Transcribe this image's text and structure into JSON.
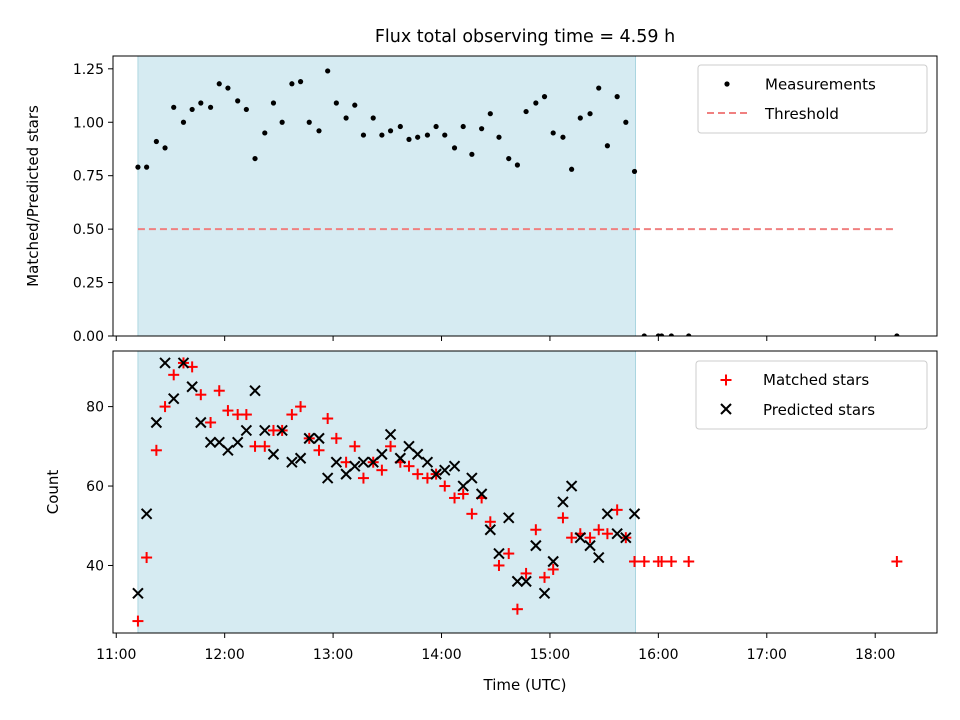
{
  "chart_data": [
    {
      "type": "scatter",
      "panel": "top",
      "title": "Flux total observing time = 4.59 h",
      "xlabel": "",
      "ylabel": "Matched/Predicted stars",
      "xlim": [
        10.97,
        18.57
      ],
      "ylim": [
        0.0,
        1.31
      ],
      "yticks": [
        0.0,
        0.25,
        0.5,
        0.75,
        1.0,
        1.25
      ],
      "ytick_labels": [
        "0.00",
        "0.25",
        "0.50",
        "0.75",
        "1.00",
        "1.25"
      ],
      "observing_window": [
        11.2,
        15.79
      ],
      "legend": {
        "position": "top-right",
        "entries": [
          "Measurements",
          "Threshold"
        ]
      },
      "threshold": {
        "name": "Threshold",
        "y": 0.5,
        "x_range": [
          11.2,
          18.2
        ],
        "color": "#f08080"
      },
      "series": [
        {
          "name": "Measurements",
          "marker": "dot",
          "color": "#000000",
          "x": [
            11.2,
            11.28,
            11.37,
            11.45,
            11.53,
            11.62,
            11.7,
            11.78,
            11.87,
            11.95,
            12.03,
            12.12,
            12.2,
            12.28,
            12.37,
            12.45,
            12.53,
            12.62,
            12.7,
            12.78,
            12.87,
            12.95,
            13.03,
            13.12,
            13.2,
            13.28,
            13.37,
            13.45,
            13.53,
            13.62,
            13.7,
            13.78,
            13.87,
            13.95,
            14.03,
            14.12,
            14.2,
            14.28,
            14.37,
            14.45,
            14.53,
            14.62,
            14.7,
            14.78,
            14.87,
            14.95,
            15.03,
            15.12,
            15.2,
            15.28,
            15.37,
            15.45,
            15.53,
            15.62,
            15.7,
            15.78,
            15.87,
            16.0,
            16.03,
            16.12,
            16.28,
            18.2
          ],
          "y": [
            0.79,
            0.79,
            0.91,
            0.88,
            1.07,
            1.0,
            1.06,
            1.09,
            1.07,
            1.18,
            1.16,
            1.1,
            1.06,
            0.83,
            0.95,
            1.09,
            1.0,
            1.18,
            1.19,
            1.0,
            0.96,
            1.24,
            1.09,
            1.02,
            1.08,
            0.94,
            1.02,
            0.94,
            0.96,
            0.98,
            0.92,
            0.93,
            0.94,
            0.98,
            0.94,
            0.88,
            0.98,
            0.85,
            0.97,
            1.04,
            0.93,
            0.83,
            0.8,
            1.05,
            1.09,
            1.12,
            0.95,
            0.93,
            0.78,
            1.02,
            1.04,
            1.16,
            0.89,
            1.12,
            1.0,
            0.77,
            0.0,
            0.0,
            0.0,
            0.0,
            0.0,
            0.0
          ]
        }
      ]
    },
    {
      "type": "scatter",
      "panel": "bottom",
      "title": "",
      "xlabel": "Time (UTC)",
      "ylabel": "Count",
      "xlim": [
        10.97,
        18.57
      ],
      "ylim": [
        23,
        94
      ],
      "xticks": [
        11,
        12,
        13,
        14,
        15,
        16,
        17,
        18
      ],
      "xtick_labels": [
        "11:00",
        "12:00",
        "13:00",
        "14:00",
        "15:00",
        "16:00",
        "17:00",
        "18:00"
      ],
      "yticks": [
        40,
        60,
        80
      ],
      "ytick_labels": [
        "40",
        "60",
        "80"
      ],
      "observing_window": [
        11.2,
        15.79
      ],
      "legend": {
        "position": "top-right",
        "entries": [
          "Matched stars",
          "Predicted stars"
        ]
      },
      "series": [
        {
          "name": "Matched stars",
          "marker": "plus",
          "color": "#ff0000",
          "x": [
            11.2,
            11.28,
            11.37,
            11.45,
            11.53,
            11.62,
            11.7,
            11.78,
            11.87,
            11.95,
            12.03,
            12.12,
            12.2,
            12.28,
            12.37,
            12.45,
            12.53,
            12.62,
            12.7,
            12.78,
            12.87,
            12.95,
            13.03,
            13.12,
            13.2,
            13.28,
            13.37,
            13.45,
            13.53,
            13.62,
            13.7,
            13.78,
            13.87,
            13.95,
            14.03,
            14.12,
            14.2,
            14.28,
            14.37,
            14.45,
            14.53,
            14.62,
            14.7,
            14.78,
            14.87,
            14.95,
            15.03,
            15.12,
            15.2,
            15.28,
            15.37,
            15.45,
            15.53,
            15.62,
            15.7,
            15.78,
            15.87,
            16.0,
            16.03,
            16.12,
            16.28,
            18.2
          ],
          "y": [
            26,
            42,
            69,
            80,
            88,
            91,
            90,
            83,
            76,
            84,
            79,
            78,
            78,
            70,
            70,
            74,
            74,
            78,
            80,
            72,
            69,
            77,
            72,
            66,
            70,
            62,
            66,
            64,
            70,
            66,
            65,
            63,
            62,
            63,
            60,
            57,
            58,
            53,
            57,
            51,
            40,
            43,
            29,
            38,
            49,
            37,
            39,
            52,
            47,
            48,
            47,
            49,
            48,
            54,
            47,
            41,
            41,
            41,
            41,
            41,
            41,
            41
          ]
        },
        {
          "name": "Predicted stars",
          "marker": "x",
          "color": "#000000",
          "x": [
            11.2,
            11.28,
            11.37,
            11.45,
            11.53,
            11.62,
            11.7,
            11.78,
            11.87,
            11.95,
            12.03,
            12.12,
            12.2,
            12.28,
            12.37,
            12.45,
            12.53,
            12.62,
            12.7,
            12.78,
            12.87,
            12.95,
            13.03,
            13.12,
            13.2,
            13.28,
            13.37,
            13.45,
            13.53,
            13.62,
            13.7,
            13.78,
            13.87,
            13.95,
            14.03,
            14.12,
            14.2,
            14.28,
            14.37,
            14.45,
            14.53,
            14.62,
            14.7,
            14.78,
            14.87,
            14.95,
            15.03,
            15.12,
            15.2,
            15.28,
            15.37,
            15.45,
            15.53,
            15.62,
            15.7,
            15.78
          ],
          "y": [
            33,
            53,
            76,
            91,
            82,
            91,
            85,
            76,
            71,
            71,
            69,
            71,
            74,
            84,
            74,
            68,
            74,
            66,
            67,
            72,
            72,
            62,
            66,
            63,
            65,
            66,
            66,
            68,
            73,
            67,
            70,
            68,
            66,
            63,
            64,
            65,
            60,
            62,
            58,
            49,
            43,
            52,
            36,
            36,
            45,
            33,
            41,
            56,
            60,
            47,
            45,
            42,
            53,
            48,
            47,
            53
          ]
        }
      ]
    }
  ]
}
